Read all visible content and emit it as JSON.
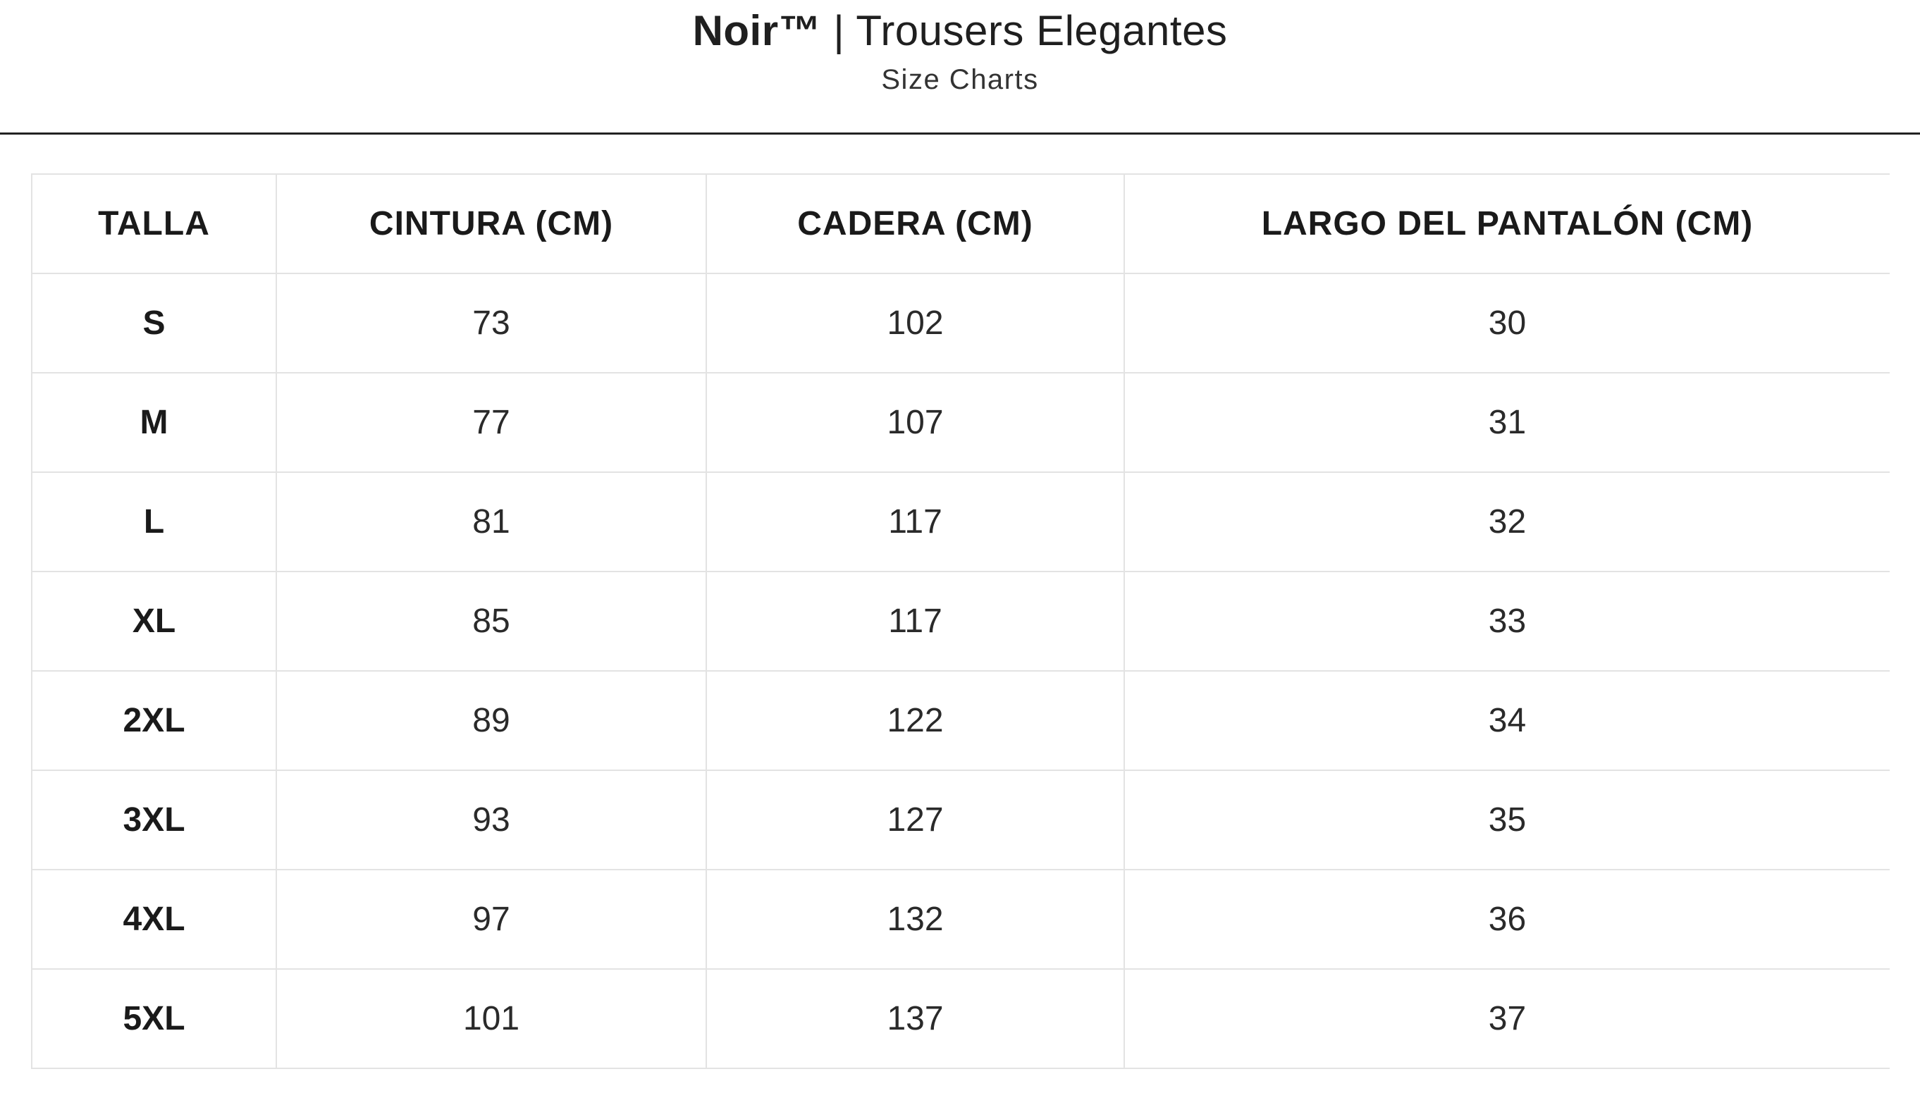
{
  "header": {
    "brand": "Noir™",
    "title_rest": " | Trousers Elegantes",
    "subtitle": "Size Charts"
  },
  "table": {
    "columns": [
      "TALLA",
      "CINTURA (CM)",
      "CADERA (CM)",
      "LARGO DEL PANTALÓN (CM)"
    ],
    "rows": [
      [
        "S",
        "73",
        "102",
        "30"
      ],
      [
        "M",
        "77",
        "107",
        "31"
      ],
      [
        "L",
        "81",
        "117",
        "32"
      ],
      [
        "XL",
        "85",
        "117",
        "33"
      ],
      [
        "2XL",
        "89",
        "122",
        "34"
      ],
      [
        "3XL",
        "93",
        "127",
        "35"
      ],
      [
        "4XL",
        "97",
        "132",
        "36"
      ],
      [
        "5XL",
        "101",
        "137",
        "37"
      ]
    ]
  }
}
